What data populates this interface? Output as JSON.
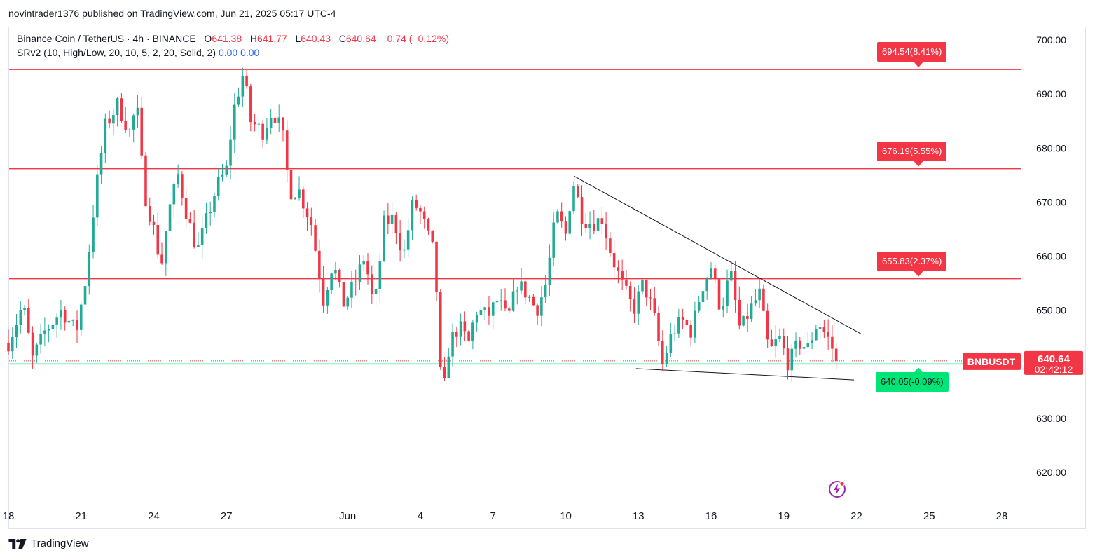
{
  "publisher": "novintrader1376 published on TradingView.com, Jun 21, 2025 05:17 UTC-4",
  "legend": {
    "symbol": "Binance Coin / TetherUS · 4h · BINANCE",
    "o_label": "O",
    "o_value": "641.38",
    "h_label": "H",
    "h_value": "641.77",
    "l_label": "L",
    "l_value": "640.43",
    "c_label": "C",
    "c_value": "640.64",
    "change": "−0.74 (−0.12%)",
    "indicator": "SRv2 (10, High/Low, 20, 10, 5, 2, 20, Solid, 2)",
    "ind_v1": "0.00",
    "ind_v2": "0.00"
  },
  "footer": {
    "brand": "TradingView"
  },
  "colors": {
    "up": "#22ab94",
    "down": "#f23645",
    "support": "#00e676",
    "resistance": "#f23645",
    "axis_text": "#131722"
  },
  "chart_data": {
    "type": "candlestick",
    "symbol": "BNBUSDT",
    "timeframe": "4h",
    "y_range": [
      612,
      703
    ],
    "y_ticks": [
      700,
      690,
      680,
      670,
      660,
      650,
      640,
      630,
      620
    ],
    "y_tick_labels": [
      "700.00",
      "690.00",
      "680.00",
      "670.00",
      "660.00",
      "650.00",
      "640.00",
      "630.00",
      "620.00"
    ],
    "x_ticks": [
      {
        "label": "18",
        "day": 18
      },
      {
        "label": "21",
        "day": 21
      },
      {
        "label": "24",
        "day": 24
      },
      {
        "label": "27",
        "day": 27
      },
      {
        "label": "Jun",
        "day": 32
      },
      {
        "label": "4",
        "day": 35
      },
      {
        "label": "7",
        "day": 38
      },
      {
        "label": "10",
        "day": 41
      },
      {
        "label": "13",
        "day": 44
      },
      {
        "label": "16",
        "day": 47
      },
      {
        "label": "19",
        "day": 50
      },
      {
        "label": "22",
        "day": 53
      },
      {
        "label": "25",
        "day": 56
      },
      {
        "label": "28",
        "day": 59
      }
    ],
    "x_range_days": [
      18,
      59.7
    ],
    "anchors": [
      {
        "d": 18.0,
        "p": 644
      },
      {
        "d": 18.6,
        "p": 651
      },
      {
        "d": 19.0,
        "p": 641
      },
      {
        "d": 19.5,
        "p": 646
      },
      {
        "d": 20.2,
        "p": 650
      },
      {
        "d": 20.8,
        "p": 646
      },
      {
        "d": 21.2,
        "p": 656
      },
      {
        "d": 21.6,
        "p": 672
      },
      {
        "d": 22.0,
        "p": 684
      },
      {
        "d": 22.5,
        "p": 688
      },
      {
        "d": 23.0,
        "p": 683
      },
      {
        "d": 23.3,
        "p": 688
      },
      {
        "d": 23.6,
        "p": 672
      },
      {
        "d": 24.0,
        "p": 665
      },
      {
        "d": 24.3,
        "p": 658
      },
      {
        "d": 24.6,
        "p": 668
      },
      {
        "d": 25.0,
        "p": 675
      },
      {
        "d": 25.4,
        "p": 667
      },
      {
        "d": 25.8,
        "p": 661
      },
      {
        "d": 26.2,
        "p": 667
      },
      {
        "d": 26.6,
        "p": 673
      },
      {
        "d": 27.0,
        "p": 676
      },
      {
        "d": 27.3,
        "p": 687
      },
      {
        "d": 27.7,
        "p": 694
      },
      {
        "d": 28.0,
        "p": 685
      },
      {
        "d": 28.5,
        "p": 683
      },
      {
        "d": 28.9,
        "p": 687
      },
      {
        "d": 29.3,
        "p": 683
      },
      {
        "d": 29.6,
        "p": 672
      },
      {
        "d": 30.0,
        "p": 672
      },
      {
        "d": 30.5,
        "p": 666
      },
      {
        "d": 31.0,
        "p": 652
      },
      {
        "d": 31.4,
        "p": 659
      },
      {
        "d": 31.8,
        "p": 651
      },
      {
        "d": 32.3,
        "p": 655
      },
      {
        "d": 32.7,
        "p": 660
      },
      {
        "d": 33.1,
        "p": 650
      },
      {
        "d": 33.5,
        "p": 666
      },
      {
        "d": 33.9,
        "p": 667
      },
      {
        "d": 34.3,
        "p": 660
      },
      {
        "d": 34.7,
        "p": 670
      },
      {
        "d": 35.0,
        "p": 668
      },
      {
        "d": 35.3,
        "p": 664
      },
      {
        "d": 35.6,
        "p": 660
      },
      {
        "d": 35.9,
        "p": 632
      },
      {
        "d": 36.2,
        "p": 644
      },
      {
        "d": 36.6,
        "p": 647
      },
      {
        "d": 37.0,
        "p": 644
      },
      {
        "d": 37.3,
        "p": 650
      },
      {
        "d": 37.8,
        "p": 649
      },
      {
        "d": 38.2,
        "p": 652
      },
      {
        "d": 38.6,
        "p": 648
      },
      {
        "d": 39.0,
        "p": 655
      },
      {
        "d": 39.4,
        "p": 653
      },
      {
        "d": 39.8,
        "p": 650
      },
      {
        "d": 40.2,
        "p": 655
      },
      {
        "d": 40.6,
        "p": 668
      },
      {
        "d": 41.0,
        "p": 664
      },
      {
        "d": 41.3,
        "p": 674
      },
      {
        "d": 41.7,
        "p": 667
      },
      {
        "d": 42.1,
        "p": 666
      },
      {
        "d": 42.5,
        "p": 667
      },
      {
        "d": 42.9,
        "p": 660
      },
      {
        "d": 43.3,
        "p": 655
      },
      {
        "d": 43.8,
        "p": 650
      },
      {
        "d": 44.2,
        "p": 655
      },
      {
        "d": 44.6,
        "p": 650
      },
      {
        "d": 45.0,
        "p": 640
      },
      {
        "d": 45.4,
        "p": 646
      },
      {
        "d": 45.8,
        "p": 648
      },
      {
        "d": 46.2,
        "p": 646
      },
      {
        "d": 46.6,
        "p": 654
      },
      {
        "d": 47.0,
        "p": 658
      },
      {
        "d": 47.4,
        "p": 650
      },
      {
        "d": 47.8,
        "p": 657
      },
      {
        "d": 48.2,
        "p": 646
      },
      {
        "d": 48.6,
        "p": 650
      },
      {
        "d": 49.0,
        "p": 653
      },
      {
        "d": 49.4,
        "p": 642
      },
      {
        "d": 49.8,
        "p": 645
      },
      {
        "d": 50.2,
        "p": 640
      },
      {
        "d": 50.6,
        "p": 644
      },
      {
        "d": 51.0,
        "p": 643
      },
      {
        "d": 51.4,
        "p": 648
      },
      {
        "d": 51.8,
        "p": 645
      },
      {
        "d": 52.1,
        "p": 642
      },
      {
        "d": 52.25,
        "p": 640.64
      }
    ],
    "horizontal_levels": [
      {
        "price": 694.54,
        "label": "694.54(8.41%)",
        "kind": "resistance"
      },
      {
        "price": 676.19,
        "label": "676.19(5.55%)",
        "kind": "resistance"
      },
      {
        "price": 655.83,
        "label": "655.83(2.37%)",
        "kind": "resistance"
      },
      {
        "price": 640.05,
        "label": "640.05(-0.09%)",
        "kind": "support"
      }
    ],
    "trendlines": [
      {
        "name": "descending-resistance",
        "from": {
          "d": 41.35,
          "p": 674.8
        },
        "to": {
          "d": 53.2,
          "p": 645.6
        }
      },
      {
        "name": "support-base",
        "from": {
          "d": 43.9,
          "p": 639.2
        },
        "to": {
          "d": 52.9,
          "p": 637.1
        }
      }
    ],
    "last_price": 640.64,
    "last_price_label": "640.64",
    "countdown": "02:42:12",
    "symbol_label": "BNBUSDT"
  }
}
